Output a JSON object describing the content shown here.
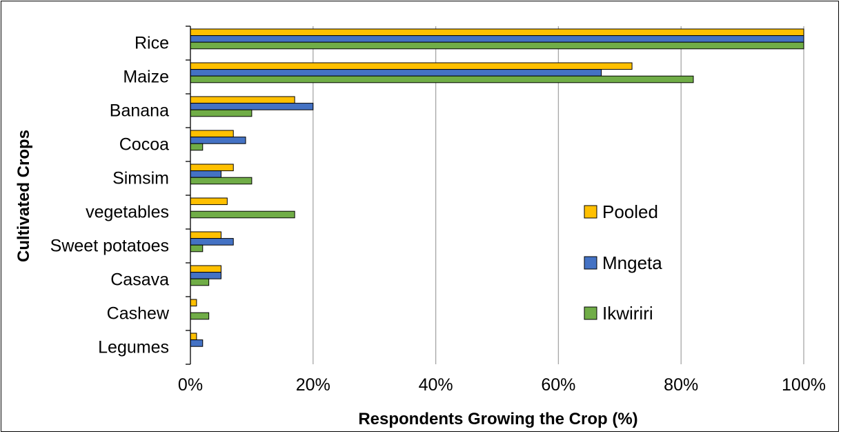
{
  "chart_data": {
    "type": "bar",
    "orientation": "horizontal",
    "title": "",
    "xlabel": "Respondents Growing the Crop (%)",
    "ylabel": "Cultivated Crops",
    "xlim": [
      0,
      100
    ],
    "x_ticks": [
      "0%",
      "20%",
      "40%",
      "60%",
      "80%",
      "100%"
    ],
    "grid": "vertical",
    "legend_position": "right",
    "categories": [
      "Rice",
      "Maize",
      "Banana",
      "Cocoa",
      "Simsim",
      "vegetables",
      "Sweet potatoes",
      "Casava",
      "Cashew",
      "Legumes"
    ],
    "series": [
      {
        "name": "Pooled",
        "color": "#FFC000",
        "values": [
          100,
          72,
          17,
          7,
          7,
          6,
          5,
          5,
          1,
          1
        ]
      },
      {
        "name": "Mngeta",
        "color": "#4472C4",
        "values": [
          100,
          67,
          20,
          9,
          5,
          0,
          7,
          5,
          0,
          2
        ]
      },
      {
        "name": "Ikwiriri",
        "color": "#70AD47",
        "values": [
          100,
          82,
          10,
          2,
          10,
          17,
          2,
          3,
          3,
          0
        ]
      }
    ]
  }
}
